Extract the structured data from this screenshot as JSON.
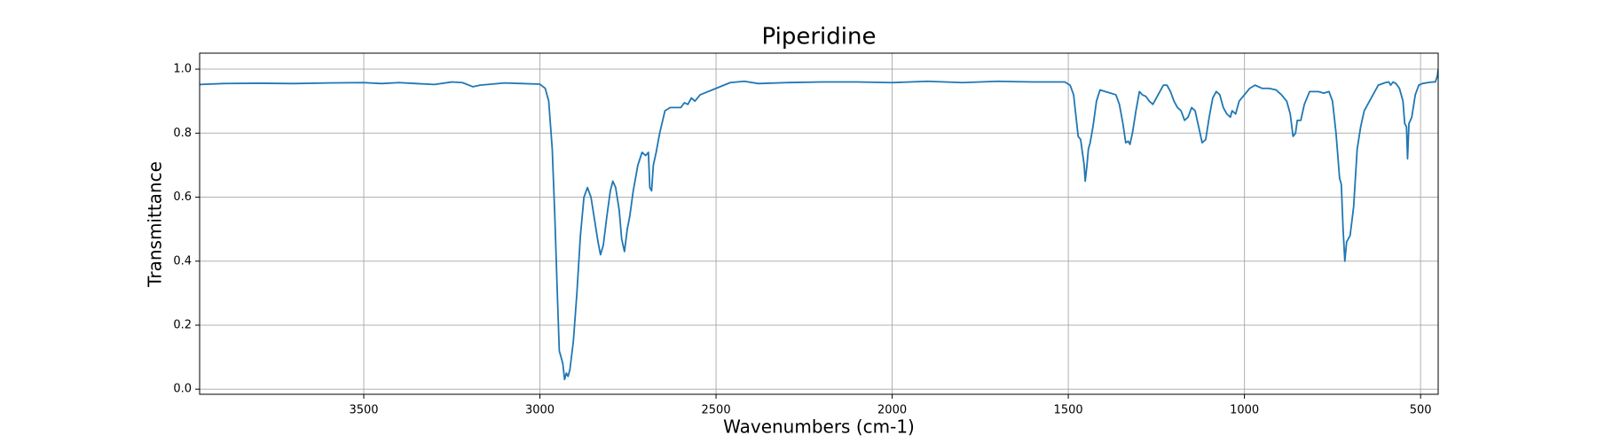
{
  "chart_data": {
    "type": "line",
    "title": "Piperidine",
    "xlabel": "Wavenumbers (cm-1)",
    "ylabel": "Transmittance",
    "color": "#1f77b4",
    "grid": true,
    "xlim": [
      3966,
      450
    ],
    "ylim": [
      -0.016,
      1.05
    ],
    "xticks": [
      3500,
      3000,
      2500,
      2000,
      1500,
      1000,
      500
    ],
    "yticks": [
      {
        "value": 0,
        "label": "0.0"
      },
      0.2,
      0.4,
      0.6,
      0.8,
      {
        "value": 1,
        "label": "1.0"
      }
    ],
    "x": [
      3966,
      3900,
      3800,
      3700,
      3600,
      3500,
      3450,
      3400,
      3350,
      3300,
      3250,
      3220,
      3190,
      3170,
      3100,
      3050,
      3000,
      2985,
      2975,
      2965,
      2958,
      2950,
      2945,
      2935,
      2930,
      2925,
      2920,
      2915,
      2905,
      2895,
      2885,
      2875,
      2865,
      2855,
      2845,
      2835,
      2828,
      2820,
      2810,
      2800,
      2793,
      2785,
      2775,
      2768,
      2760,
      2752,
      2745,
      2735,
      2722,
      2710,
      2700,
      2692,
      2688,
      2683,
      2678,
      2670,
      2660,
      2645,
      2630,
      2600,
      2590,
      2580,
      2570,
      2560,
      2545,
      2500,
      2460,
      2420,
      2380,
      2300,
      2200,
      2100,
      2000,
      1900,
      1800,
      1700,
      1600,
      1510,
      1495,
      1485,
      1478,
      1472,
      1465,
      1460,
      1455,
      1452,
      1447,
      1443,
      1438,
      1430,
      1420,
      1410,
      1395,
      1380,
      1365,
      1355,
      1345,
      1337,
      1330,
      1325,
      1318,
      1308,
      1298,
      1290,
      1280,
      1270,
      1260,
      1250,
      1240,
      1230,
      1220,
      1210,
      1200,
      1190,
      1180,
      1170,
      1160,
      1150,
      1140,
      1130,
      1120,
      1110,
      1100,
      1090,
      1080,
      1070,
      1060,
      1050,
      1040,
      1035,
      1025,
      1015,
      1000,
      985,
      970,
      950,
      930,
      910,
      895,
      880,
      870,
      862,
      855,
      850,
      840,
      830,
      815,
      790,
      775,
      760,
      750,
      740,
      730,
      725,
      720,
      715,
      710,
      700,
      690,
      680,
      670,
      660,
      650,
      635,
      620,
      600,
      590,
      585,
      578,
      570,
      560,
      550,
      545,
      540,
      537,
      533,
      525,
      515,
      505,
      495,
      480,
      465,
      458,
      452,
      450
    ],
    "values": [
      0.952,
      0.955,
      0.956,
      0.955,
      0.957,
      0.958,
      0.955,
      0.958,
      0.955,
      0.952,
      0.96,
      0.958,
      0.945,
      0.95,
      0.957,
      0.955,
      0.953,
      0.94,
      0.9,
      0.75,
      0.55,
      0.28,
      0.12,
      0.08,
      0.03,
      0.05,
      0.04,
      0.06,
      0.15,
      0.3,
      0.48,
      0.6,
      0.63,
      0.6,
      0.53,
      0.46,
      0.42,
      0.45,
      0.54,
      0.62,
      0.65,
      0.63,
      0.56,
      0.47,
      0.43,
      0.5,
      0.54,
      0.62,
      0.7,
      0.74,
      0.73,
      0.74,
      0.63,
      0.62,
      0.7,
      0.74,
      0.8,
      0.87,
      0.88,
      0.88,
      0.895,
      0.89,
      0.91,
      0.9,
      0.92,
      0.94,
      0.958,
      0.962,
      0.955,
      0.958,
      0.96,
      0.96,
      0.958,
      0.962,
      0.958,
      0.962,
      0.96,
      0.96,
      0.95,
      0.92,
      0.85,
      0.79,
      0.78,
      0.74,
      0.7,
      0.65,
      0.7,
      0.75,
      0.77,
      0.82,
      0.9,
      0.935,
      0.93,
      0.925,
      0.92,
      0.89,
      0.83,
      0.77,
      0.775,
      0.765,
      0.8,
      0.87,
      0.93,
      0.92,
      0.915,
      0.9,
      0.89,
      0.91,
      0.93,
      0.95,
      0.95,
      0.93,
      0.9,
      0.88,
      0.87,
      0.84,
      0.85,
      0.88,
      0.87,
      0.82,
      0.77,
      0.78,
      0.85,
      0.91,
      0.93,
      0.92,
      0.88,
      0.86,
      0.85,
      0.87,
      0.86,
      0.9,
      0.92,
      0.94,
      0.95,
      0.94,
      0.94,
      0.935,
      0.92,
      0.9,
      0.86,
      0.79,
      0.8,
      0.84,
      0.84,
      0.89,
      0.93,
      0.93,
      0.925,
      0.93,
      0.9,
      0.8,
      0.66,
      0.64,
      0.5,
      0.4,
      0.46,
      0.48,
      0.57,
      0.75,
      0.82,
      0.87,
      0.89,
      0.92,
      0.95,
      0.958,
      0.96,
      0.95,
      0.96,
      0.955,
      0.94,
      0.9,
      0.83,
      0.82,
      0.72,
      0.83,
      0.85,
      0.92,
      0.95,
      0.955,
      0.958,
      0.96,
      0.96,
      0.98,
      1.0
    ]
  }
}
